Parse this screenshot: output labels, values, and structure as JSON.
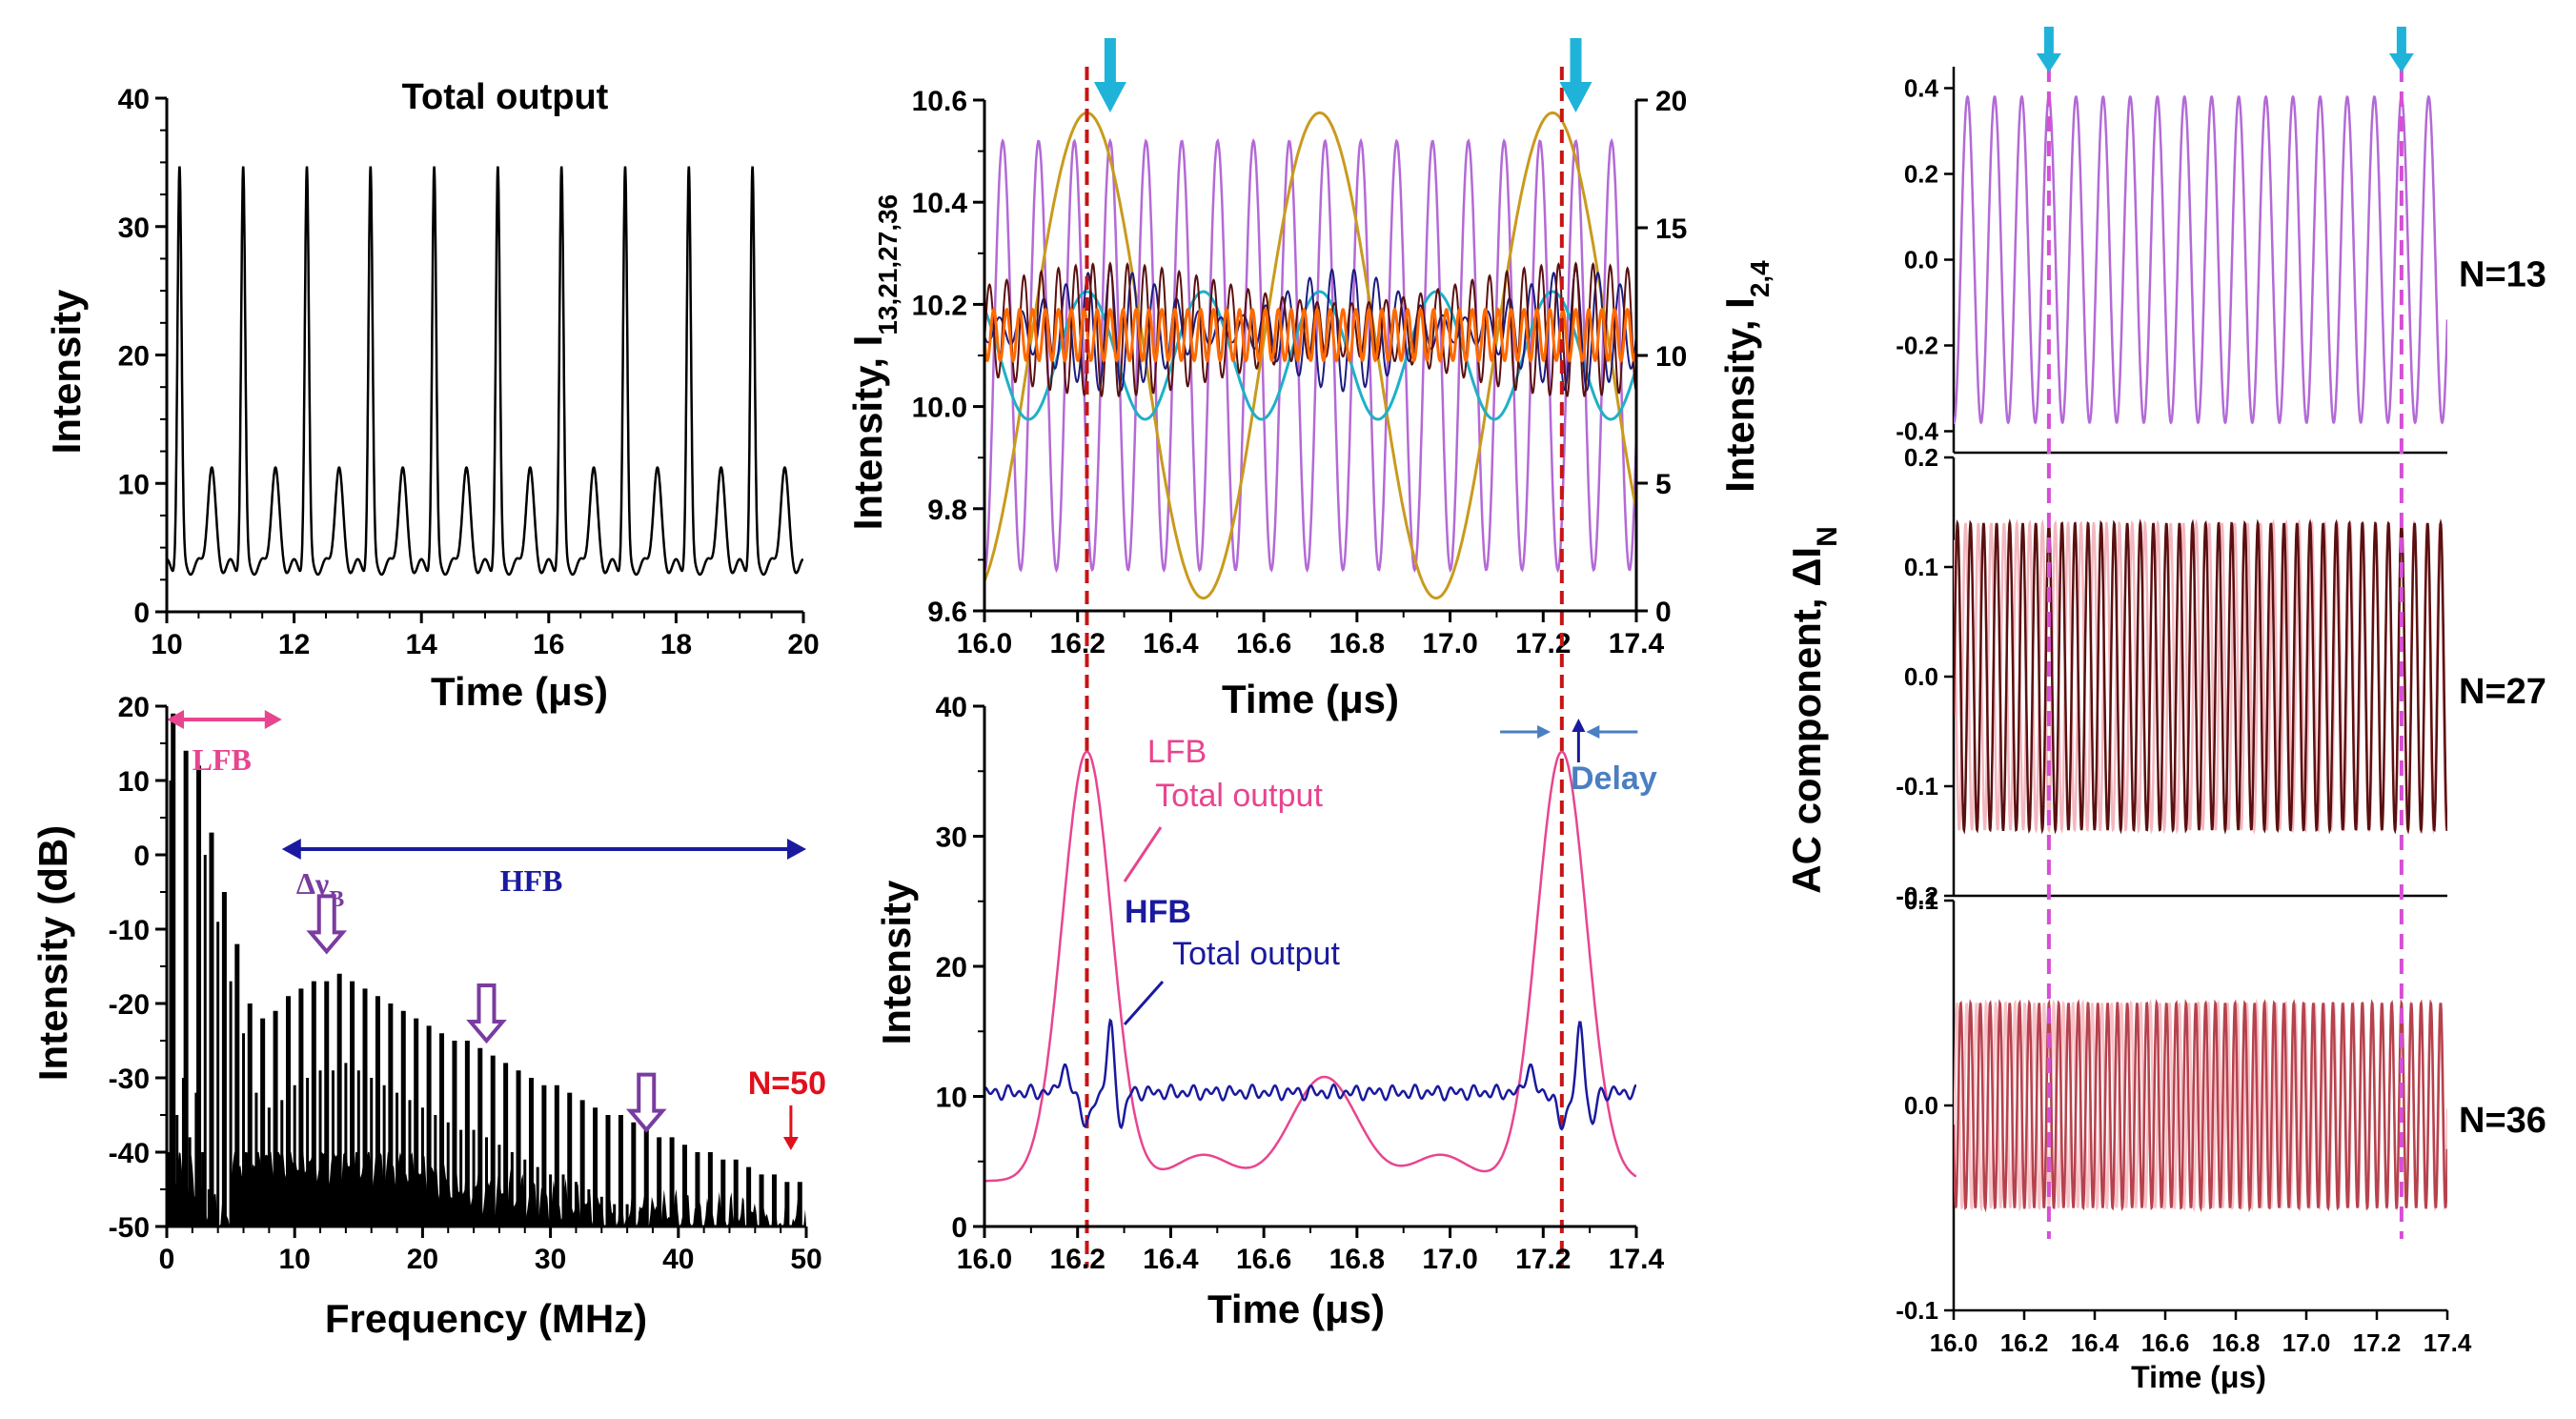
{
  "colors": {
    "black": "#000000",
    "lfb": "#e8458f",
    "hfb": "#1a1a9e",
    "purple": "#b36ad6",
    "purple_dark": "#7e3fa8",
    "orange": "#ff6a00",
    "gold": "#c99a1e",
    "cyan": "#1fb0c8",
    "navy": "#1c1c80",
    "arrow_cyan": "#1fb3d9",
    "red_dash": "#c81414",
    "magenta_dash": "#d64fd6",
    "maroon": "#5a1010",
    "pink_light": "#f4b8c0",
    "rose": "#b5424d",
    "rose_light": "#f7c2c8",
    "blue_ann": "#4a7fc1",
    "red_ann": "#e0101c",
    "hfb_ann": "#1a1aa0",
    "violet_ann": "#7a3ca0"
  },
  "chart_data": [
    {
      "id": "total_output_time",
      "type": "line",
      "title": "Total output",
      "xlabel": "Time (μs)",
      "ylabel": "Intensity",
      "xlim": [
        10,
        20
      ],
      "ylim": [
        0,
        40
      ],
      "xticks": [
        "10",
        "12",
        "14",
        "16",
        "18",
        "20"
      ],
      "yticks": [
        "0",
        "10",
        "20",
        "30",
        "40"
      ],
      "series": [
        {
          "name": "Total output",
          "period_us": 1.0,
          "first_peak_us": 10.2,
          "peak_value": 34.5,
          "secondary_peak_value": 11.0,
          "baseline": 3.5
        }
      ]
    },
    {
      "id": "spectrum",
      "type": "bar",
      "xlabel": "Frequency (MHz)",
      "ylabel": "Intensity (dB)",
      "xlim": [
        0,
        50
      ],
      "ylim": [
        -50,
        20
      ],
      "xticks": [
        "0",
        "10",
        "20",
        "30",
        "40",
        "50"
      ],
      "yticks": [
        "-50",
        "-40",
        "-30",
        "-20",
        "-10",
        "0",
        "10",
        "20"
      ],
      "line_spacing_MHz": 1.0,
      "values_dB": [
        19,
        14,
        12,
        3,
        -5,
        -12,
        -20,
        -22,
        -21,
        -19,
        -18,
        -17,
        -17,
        -16,
        -17,
        -18,
        -19,
        -20,
        -21,
        -22,
        -23,
        -24,
        -25,
        -25,
        -26,
        -27,
        -28,
        -29,
        -30,
        -31,
        -31,
        -32,
        -33,
        -34,
        -35,
        -35,
        -36,
        -37,
        -38,
        -38,
        -39,
        -40,
        -40,
        -41,
        -41,
        -42,
        -43,
        -43,
        -44,
        -44
      ],
      "annotations": {
        "lfb": "LFB",
        "hfb": "HFB",
        "delta_nu_symbol": "Δν",
        "delta_nu_sub": "B",
        "n50": "N=50"
      },
      "hollow_arrows_MHz": [
        12.5,
        25,
        37.5
      ],
      "lfb_range_MHz": [
        0,
        9
      ],
      "hfb_range_MHz": [
        9,
        50
      ]
    },
    {
      "id": "modes_time",
      "type": "line",
      "xlabel": "Time (μs)",
      "ylabel": "Intensity, I",
      "ylabel_sub": "13,21,27,36",
      "ylabel_right": "Intensity, I",
      "ylabel_right_sub": "2,4",
      "xlim": [
        16.0,
        17.4
      ],
      "ylim": [
        9.6,
        10.6
      ],
      "ylim_right": [
        0,
        20
      ],
      "xticks": [
        "16.0",
        "16.2",
        "16.4",
        "16.6",
        "16.8",
        "17.0",
        "17.2",
        "17.4"
      ],
      "yticks": [
        "9.6",
        "9.8",
        "10.0",
        "10.2",
        "10.4",
        "10.6"
      ],
      "yticks_right": [
        "0",
        "5",
        "10",
        "15",
        "20"
      ],
      "series": [
        {
          "name": "I13",
          "mean": 10.1,
          "amplitude": 0.42,
          "freq_MHz": 13
        },
        {
          "name": "I21",
          "mean": 10.15,
          "amplitude": 0.12,
          "freq_MHz": 21
        },
        {
          "name": "I27",
          "mean": 10.15,
          "amplitude": 0.13,
          "freq_MHz": 27
        },
        {
          "name": "I36",
          "mean": 10.14,
          "amplitude": 0.05,
          "freq_MHz": 36
        },
        {
          "name": "I2",
          "axis": "right",
          "mean": 10,
          "amplitude": 9.5,
          "freq_MHz": 2,
          "peak_time_us": 16.22
        },
        {
          "name": "I4",
          "axis": "right",
          "mean": 10,
          "amplitude": 2.5,
          "freq_MHz": 4
        }
      ],
      "dashed_lines_us": [
        16.22,
        17.24
      ],
      "arrow_times_us": [
        16.27,
        17.27
      ]
    },
    {
      "id": "lfb_hfb_total",
      "type": "line",
      "xlabel": "Time (μs)",
      "ylabel": "Intensity",
      "xlim": [
        16.0,
        17.4
      ],
      "ylim": [
        0,
        40
      ],
      "xticks": [
        "16.0",
        "16.2",
        "16.4",
        "16.6",
        "16.8",
        "17.0",
        "17.2",
        "17.4"
      ],
      "yticks": [
        "0",
        "10",
        "20",
        "30",
        "40"
      ],
      "series": [
        {
          "name": "LFB Total output",
          "peaks_us": [
            16.22,
            17.24
          ],
          "peak_value": 36.5,
          "mid_peak_us": 16.73,
          "mid_peak_value": 11.5,
          "min_value": 3.5
        },
        {
          "name": "HFB Total output",
          "baseline": 10.3,
          "spike_times_us": [
            16.27,
            17.28
          ],
          "spike_value": 15.5
        }
      ],
      "annotations": {
        "lfb_line1": "LFB",
        "lfb_line2": "Total output",
        "hfb_line1": "HFB",
        "hfb_line2": "Total output",
        "delay": "Delay"
      },
      "dashed_lines_us": [
        16.22,
        17.24
      ]
    },
    {
      "id": "ac_components",
      "type": "line",
      "ylabel": "AC component, ΔI",
      "ylabel_sub": "N",
      "xlabel": "Time (μs)",
      "xlim": [
        16.0,
        17.4
      ],
      "xticks": [
        "16.0",
        "16.2",
        "16.4",
        "16.6",
        "16.8",
        "17.0",
        "17.2",
        "17.4"
      ],
      "panels": [
        {
          "label": "N=13",
          "ylim": [
            -0.45,
            0.45
          ],
          "yticks": [
            "-0.4",
            "-0.2",
            "0.0",
            "0.2",
            "0.4"
          ],
          "amplitude": 0.38,
          "freq_MHz": 13
        },
        {
          "label": "N=27",
          "ylim": [
            -0.2,
            0.2
          ],
          "yticks": [
            "-0.2",
            "-0.1",
            "0.0",
            "0.1",
            "0.2"
          ],
          "amplitude": 0.14,
          "freq_MHz": 27
        },
        {
          "label": "N=36",
          "ylim": [
            -0.1,
            0.1
          ],
          "yticks": [
            "-0.1",
            "0.0",
            "0.1"
          ],
          "amplitude": 0.05,
          "freq_MHz": 36
        }
      ],
      "dashed_lines_us": [
        16.27,
        17.27
      ],
      "arrow_times_us": [
        16.27,
        17.27
      ]
    }
  ]
}
